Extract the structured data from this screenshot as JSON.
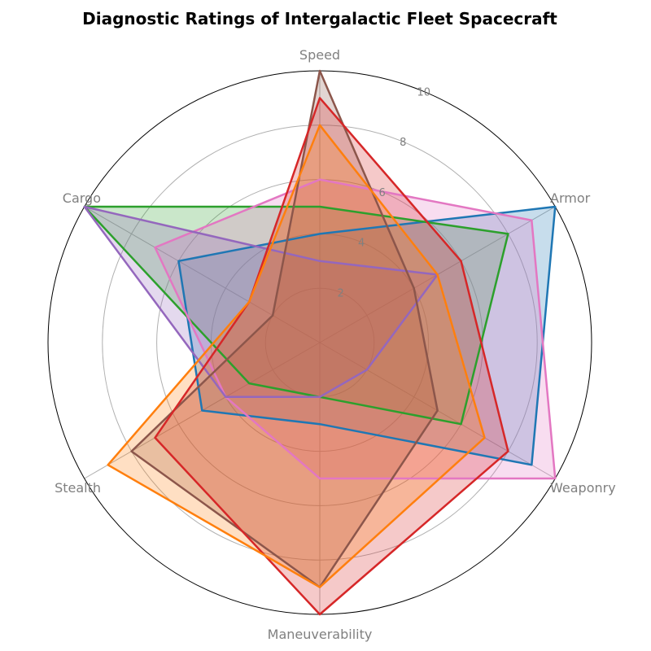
{
  "chart_data": {
    "type": "radar",
    "title": "Diagnostic Ratings of Intergalactic Fleet Spacecraft",
    "axes": [
      "Speed",
      "Armor",
      "Weaponry",
      "Maneuverability",
      "Stealth",
      "Cargo"
    ],
    "rlim": [
      0,
      10
    ],
    "rticks": [
      2,
      4,
      6,
      8,
      10
    ],
    "grid": true,
    "legend": "none",
    "series": [
      {
        "color": "#1f77b4",
        "values": [
          4,
          10,
          9,
          3,
          5,
          6
        ]
      },
      {
        "color": "#2ca02c",
        "values": [
          5,
          8,
          6,
          2,
          3,
          10
        ]
      },
      {
        "color": "#e377c2",
        "values": [
          6,
          9,
          10,
          5,
          4,
          7
        ]
      },
      {
        "color": "#9467bd",
        "values": [
          3,
          5,
          2,
          2,
          4,
          10
        ]
      },
      {
        "color": "#8c564b",
        "values": [
          10,
          4,
          5,
          9,
          8,
          2
        ]
      },
      {
        "color": "#d62728",
        "values": [
          9,
          6,
          8,
          10,
          7,
          3
        ]
      },
      {
        "color": "#ff7f0e",
        "values": [
          8,
          5,
          7,
          9,
          9,
          3
        ]
      }
    ]
  }
}
